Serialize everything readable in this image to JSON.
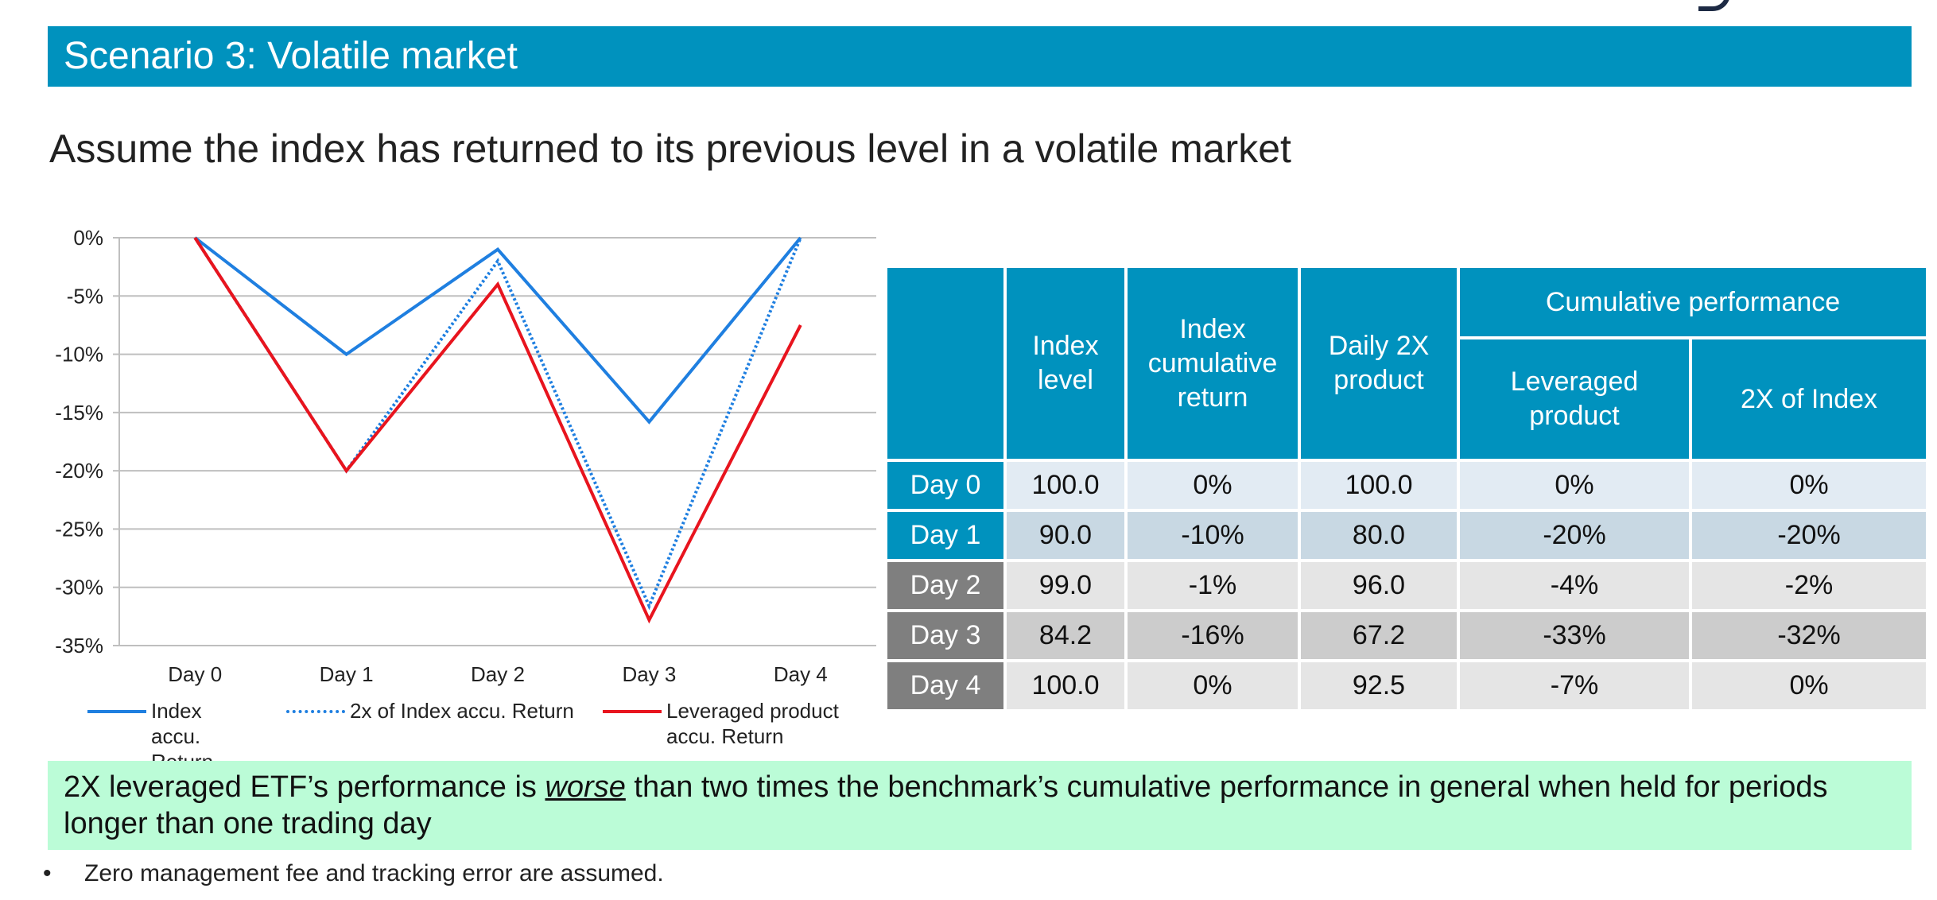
{
  "title": "Scenario 3: Volatile market",
  "subtitle": "Assume the index has returned to its previous level in a volatile market",
  "chart_data": {
    "type": "line",
    "categories": [
      "Day 0",
      "Day 1",
      "Day 2",
      "Day 3",
      "Day 4"
    ],
    "y_ticks": [
      "0%",
      "-5%",
      "-10%",
      "-15%",
      "-20%",
      "-25%",
      "-30%",
      "-35%"
    ],
    "ylim": [
      -35,
      0
    ],
    "grid": true,
    "legend_position": "bottom",
    "series": [
      {
        "name": "Index accu. Return",
        "values": [
          0,
          -10,
          -1,
          -15.8,
          0
        ],
        "color": "#1f7fe0",
        "style": "solid"
      },
      {
        "name": "2x of Index accu. Return",
        "values": [
          0,
          -20,
          -2,
          -31.6,
          0
        ],
        "color": "#1f7fe0",
        "style": "dotted"
      },
      {
        "name": "Leveraged product accu. Return",
        "values": [
          0,
          -20,
          -4,
          -32.8,
          -7.5
        ],
        "color": "#e8141e",
        "style": "solid"
      }
    ]
  },
  "legend": {
    "index_line1": "Index",
    "index_line2": "accu. Return",
    "twox": "2x of Index accu. Return",
    "lev_line1": "Leveraged product",
    "lev_line2": "accu. Return"
  },
  "table": {
    "headers": {
      "index_level": "Index level",
      "index_cum_return": "Index cumulative return",
      "daily_2x": "Daily 2X product",
      "cumulative": "Cumulative performance",
      "leveraged": "Leveraged product",
      "twox_index": "2X of Index"
    },
    "rows": [
      {
        "day": "Day 0",
        "level": "100.0",
        "cum": "0%",
        "daily": "100.0",
        "lev": "0%",
        "twox": "0%"
      },
      {
        "day": "Day 1",
        "level": "90.0",
        "cum": "-10%",
        "daily": "80.0",
        "lev": "-20%",
        "twox": "-20%"
      },
      {
        "day": "Day 2",
        "level": "99.0",
        "cum": "-1%",
        "daily": "96.0",
        "lev": "-4%",
        "twox": "-2%"
      },
      {
        "day": "Day 3",
        "level": "84.2",
        "cum": "-16%",
        "daily": "67.2",
        "lev": "-33%",
        "twox": "-32%"
      },
      {
        "day": "Day 4",
        "level": "100.0",
        "cum": "0%",
        "daily": "92.5",
        "lev": "-7%",
        "twox": "0%"
      }
    ]
  },
  "callout": {
    "before": "2X leveraged ETF’s performance is ",
    "emphasis": "worse",
    "after": " than two times the benchmark’s cumulative performance in general when held for periods longer than one trading day"
  },
  "footnote": {
    "bullet": "•",
    "text": "Zero management fee and tracking error are assumed."
  }
}
